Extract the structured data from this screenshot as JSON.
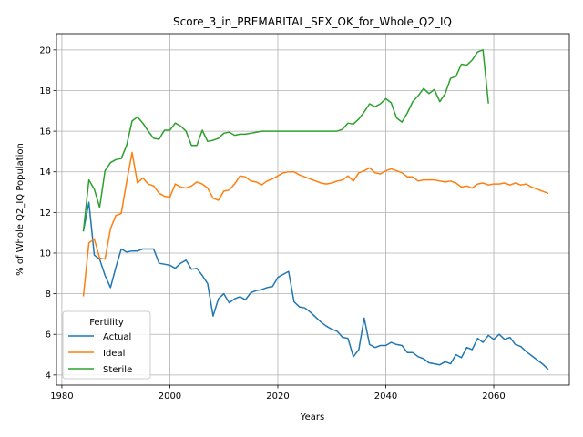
{
  "chart_data": {
    "type": "line",
    "title": "Score_3_in_PREMARITAL_SEX_OK_for_Whole_Q2_IQ",
    "xlabel": "Years",
    "ylabel": "% of Whole Q2_IQ Population",
    "xlim": [
      1979,
      2074
    ],
    "ylim": [
      3.5,
      20.8
    ],
    "xticks": [
      1980,
      2000,
      2020,
      2040,
      2060
    ],
    "yticks": [
      4,
      6,
      8,
      10,
      12,
      14,
      16,
      18,
      20
    ],
    "grid": true,
    "legend": {
      "title": "Fertility",
      "placement": "bottom-left"
    },
    "series": [
      {
        "name": "Actual",
        "color": "#1f77b4",
        "points": [
          [
            1984,
            11.1
          ],
          [
            1985,
            12.5
          ],
          [
            1986,
            9.9
          ],
          [
            1987,
            9.7
          ],
          [
            1988,
            8.9
          ],
          [
            1989,
            8.3
          ],
          [
            1990,
            9.3
          ],
          [
            1991,
            10.2
          ],
          [
            1992,
            10.05
          ],
          [
            1993,
            10.1
          ],
          [
            1994,
            10.1
          ],
          [
            1995,
            10.2
          ],
          [
            1996,
            10.2
          ],
          [
            1997,
            10.2
          ],
          [
            1998,
            9.5
          ],
          [
            1999,
            9.45
          ],
          [
            2000,
            9.4
          ],
          [
            2001,
            9.25
          ],
          [
            2002,
            9.5
          ],
          [
            2003,
            9.65
          ],
          [
            2004,
            9.2
          ],
          [
            2005,
            9.25
          ],
          [
            2006,
            8.9
          ],
          [
            2007,
            8.5
          ],
          [
            2008,
            6.9
          ],
          [
            2009,
            7.75
          ],
          [
            2010,
            8.0
          ],
          [
            2011,
            7.55
          ],
          [
            2012,
            7.75
          ],
          [
            2013,
            7.85
          ],
          [
            2014,
            7.7
          ],
          [
            2015,
            8.05
          ],
          [
            2016,
            8.15
          ],
          [
            2017,
            8.2
          ],
          [
            2018,
            8.3
          ],
          [
            2019,
            8.35
          ],
          [
            2020,
            8.8
          ],
          [
            2021,
            8.95
          ],
          [
            2022,
            9.1
          ],
          [
            2023,
            7.6
          ],
          [
            2024,
            7.35
          ],
          [
            2025,
            7.3
          ],
          [
            2026,
            7.1
          ],
          [
            2027,
            6.85
          ],
          [
            2028,
            6.6
          ],
          [
            2029,
            6.4
          ],
          [
            2030,
            6.25
          ],
          [
            2031,
            6.15
          ],
          [
            2032,
            5.85
          ],
          [
            2033,
            5.8
          ],
          [
            2034,
            4.9
          ],
          [
            2035,
            5.25
          ],
          [
            2036,
            6.8
          ],
          [
            2037,
            5.5
          ],
          [
            2038,
            5.35
          ],
          [
            2039,
            5.45
          ],
          [
            2040,
            5.45
          ],
          [
            2041,
            5.6
          ],
          [
            2042,
            5.5
          ],
          [
            2043,
            5.45
          ],
          [
            2044,
            5.1
          ],
          [
            2045,
            5.1
          ],
          [
            2046,
            4.9
          ],
          [
            2047,
            4.8
          ],
          [
            2048,
            4.6
          ],
          [
            2049,
            4.55
          ],
          [
            2050,
            4.5
          ],
          [
            2051,
            4.65
          ],
          [
            2052,
            4.55
          ],
          [
            2053,
            5.0
          ],
          [
            2054,
            4.85
          ],
          [
            2055,
            5.35
          ],
          [
            2056,
            5.25
          ],
          [
            2057,
            5.8
          ],
          [
            2058,
            5.6
          ],
          [
            2059,
            5.95
          ],
          [
            2060,
            5.75
          ],
          [
            2061,
            6.0
          ],
          [
            2062,
            5.75
          ],
          [
            2063,
            5.85
          ],
          [
            2064,
            5.5
          ],
          [
            2065,
            5.4
          ],
          [
            2066,
            5.15
          ],
          [
            2067,
            4.95
          ],
          [
            2068,
            4.75
          ],
          [
            2069,
            4.55
          ],
          [
            2070,
            4.3
          ]
        ]
      },
      {
        "name": "Ideal",
        "color": "#ff7f0e",
        "points": [
          [
            1984,
            7.9
          ],
          [
            1985,
            10.5
          ],
          [
            1986,
            10.7
          ],
          [
            1987,
            9.75
          ],
          [
            1988,
            9.7
          ],
          [
            1989,
            11.2
          ],
          [
            1990,
            11.85
          ],
          [
            1991,
            11.95
          ],
          [
            1992,
            13.5
          ],
          [
            1993,
            14.95
          ],
          [
            1994,
            13.45
          ],
          [
            1995,
            13.7
          ],
          [
            1996,
            13.4
          ],
          [
            1997,
            13.3
          ],
          [
            1998,
            12.95
          ],
          [
            1999,
            12.8
          ],
          [
            2000,
            12.75
          ],
          [
            2001,
            13.4
          ],
          [
            2002,
            13.25
          ],
          [
            2003,
            13.2
          ],
          [
            2004,
            13.3
          ],
          [
            2005,
            13.5
          ],
          [
            2006,
            13.4
          ],
          [
            2007,
            13.2
          ],
          [
            2008,
            12.7
          ],
          [
            2009,
            12.6
          ],
          [
            2010,
            13.05
          ],
          [
            2011,
            13.1
          ],
          [
            2012,
            13.4
          ],
          [
            2013,
            13.8
          ],
          [
            2014,
            13.75
          ],
          [
            2015,
            13.55
          ],
          [
            2016,
            13.5
          ],
          [
            2017,
            13.35
          ],
          [
            2018,
            13.55
          ],
          [
            2019,
            13.65
          ],
          [
            2020,
            13.8
          ],
          [
            2021,
            13.95
          ],
          [
            2022,
            14.0
          ],
          [
            2023,
            14.0
          ],
          [
            2024,
            13.85
          ],
          [
            2025,
            13.75
          ],
          [
            2026,
            13.65
          ],
          [
            2027,
            13.55
          ],
          [
            2028,
            13.45
          ],
          [
            2029,
            13.4
          ],
          [
            2030,
            13.45
          ],
          [
            2031,
            13.55
          ],
          [
            2032,
            13.6
          ],
          [
            2033,
            13.8
          ],
          [
            2034,
            13.55
          ],
          [
            2035,
            13.95
          ],
          [
            2036,
            14.05
          ],
          [
            2037,
            14.2
          ],
          [
            2038,
            13.95
          ],
          [
            2039,
            13.9
          ],
          [
            2040,
            14.05
          ],
          [
            2041,
            14.15
          ],
          [
            2042,
            14.05
          ],
          [
            2043,
            13.95
          ],
          [
            2044,
            13.75
          ],
          [
            2045,
            13.75
          ],
          [
            2046,
            13.55
          ],
          [
            2047,
            13.6
          ],
          [
            2048,
            13.6
          ],
          [
            2049,
            13.6
          ],
          [
            2050,
            13.55
          ],
          [
            2051,
            13.5
          ],
          [
            2052,
            13.55
          ],
          [
            2053,
            13.45
          ],
          [
            2054,
            13.25
          ],
          [
            2055,
            13.3
          ],
          [
            2056,
            13.2
          ],
          [
            2057,
            13.4
          ],
          [
            2058,
            13.45
          ],
          [
            2059,
            13.35
          ],
          [
            2060,
            13.4
          ],
          [
            2061,
            13.4
          ],
          [
            2062,
            13.45
          ],
          [
            2063,
            13.35
          ],
          [
            2064,
            13.45
          ],
          [
            2065,
            13.35
          ],
          [
            2066,
            13.4
          ],
          [
            2067,
            13.25
          ],
          [
            2068,
            13.15
          ],
          [
            2069,
            13.05
          ],
          [
            2070,
            12.95
          ]
        ]
      },
      {
        "name": "Sterile",
        "color": "#2ca02c",
        "points": [
          [
            1984,
            11.1
          ],
          [
            1985,
            13.6
          ],
          [
            1986,
            13.15
          ],
          [
            1987,
            12.25
          ],
          [
            1988,
            14.05
          ],
          [
            1989,
            14.45
          ],
          [
            1990,
            14.6
          ],
          [
            1991,
            14.65
          ],
          [
            1992,
            15.3
          ],
          [
            1993,
            16.5
          ],
          [
            1994,
            16.7
          ],
          [
            1995,
            16.4
          ],
          [
            1996,
            16.0
          ],
          [
            1997,
            15.65
          ],
          [
            1998,
            15.6
          ],
          [
            1999,
            16.05
          ],
          [
            2000,
            16.05
          ],
          [
            2001,
            16.4
          ],
          [
            2002,
            16.25
          ],
          [
            2003,
            16.0
          ],
          [
            2004,
            15.3
          ],
          [
            2005,
            15.3
          ],
          [
            2006,
            16.05
          ],
          [
            2007,
            15.5
          ],
          [
            2008,
            15.55
          ],
          [
            2009,
            15.65
          ],
          [
            2010,
            15.9
          ],
          [
            2011,
            15.95
          ],
          [
            2012,
            15.8
          ],
          [
            2013,
            15.85
          ],
          [
            2014,
            15.85
          ],
          [
            2015,
            15.9
          ],
          [
            2016,
            15.95
          ],
          [
            2017,
            16.0
          ],
          [
            2018,
            16.0
          ],
          [
            2019,
            16.0
          ],
          [
            2020,
            16.0
          ],
          [
            2021,
            16.0
          ],
          [
            2022,
            16.0
          ],
          [
            2023,
            16.0
          ],
          [
            2024,
            16.0
          ],
          [
            2025,
            16.0
          ],
          [
            2026,
            16.0
          ],
          [
            2027,
            16.0
          ],
          [
            2028,
            16.0
          ],
          [
            2029,
            16.0
          ],
          [
            2030,
            16.0
          ],
          [
            2031,
            16.0
          ],
          [
            2032,
            16.1
          ],
          [
            2033,
            16.4
          ],
          [
            2034,
            16.35
          ],
          [
            2035,
            16.6
          ],
          [
            2036,
            16.95
          ],
          [
            2037,
            17.35
          ],
          [
            2038,
            17.2
          ],
          [
            2039,
            17.35
          ],
          [
            2040,
            17.6
          ],
          [
            2041,
            17.4
          ],
          [
            2042,
            16.65
          ],
          [
            2043,
            16.45
          ],
          [
            2044,
            16.9
          ],
          [
            2045,
            17.45
          ],
          [
            2046,
            17.75
          ],
          [
            2047,
            18.1
          ],
          [
            2048,
            17.85
          ],
          [
            2049,
            18.05
          ],
          [
            2050,
            17.45
          ],
          [
            2051,
            17.85
          ],
          [
            2052,
            18.6
          ],
          [
            2053,
            18.7
          ],
          [
            2054,
            19.3
          ],
          [
            2055,
            19.25
          ],
          [
            2056,
            19.5
          ],
          [
            2057,
            19.9
          ],
          [
            2058,
            20.0
          ],
          [
            2059,
            17.4
          ]
        ]
      }
    ]
  }
}
